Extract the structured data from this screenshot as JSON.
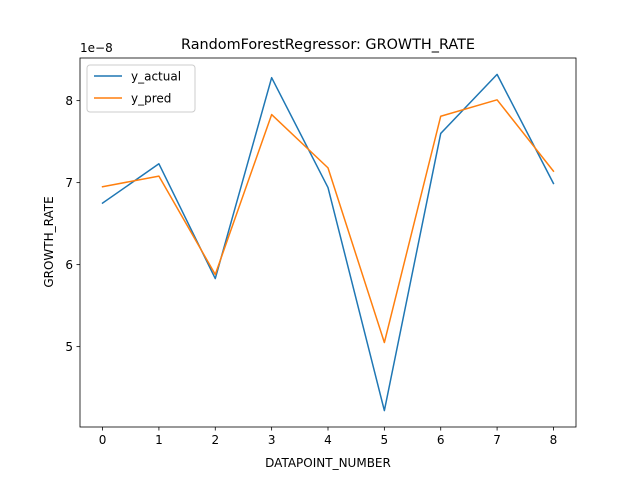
{
  "chart_data": {
    "type": "line",
    "title": "RandomForestRegressor: GROWTH_RATE",
    "xlabel": "DATAPOINT_NUMBER",
    "ylabel": "GROWTH_RATE",
    "y_offset_label": "1e−8",
    "x": [
      0,
      1,
      2,
      3,
      4,
      5,
      6,
      7,
      8
    ],
    "x_ticks": [
      0,
      1,
      2,
      3,
      4,
      5,
      6,
      7,
      8
    ],
    "x_tick_labels": [
      "0",
      "1",
      "2",
      "3",
      "4",
      "5",
      "6",
      "7",
      "8"
    ],
    "y_ticks": [
      5,
      6,
      7,
      8
    ],
    "y_tick_labels": [
      "5",
      "6",
      "7",
      "8"
    ],
    "xlim": [
      -0.4,
      8.4
    ],
    "ylim": [
      4.02,
      8.52
    ],
    "y_unit_multiplier": 1e-08,
    "grid": false,
    "legend_position": "top-left",
    "series": [
      {
        "name": "y_actual",
        "color": "#1f77b4",
        "values": [
          6.75,
          7.23,
          5.83,
          8.28,
          6.94,
          4.22,
          7.6,
          8.32,
          6.99
        ]
      },
      {
        "name": "y_pred",
        "color": "#ff7f0e",
        "values": [
          6.95,
          7.08,
          5.88,
          7.83,
          7.18,
          5.05,
          7.81,
          8.01,
          7.14
        ]
      }
    ]
  }
}
